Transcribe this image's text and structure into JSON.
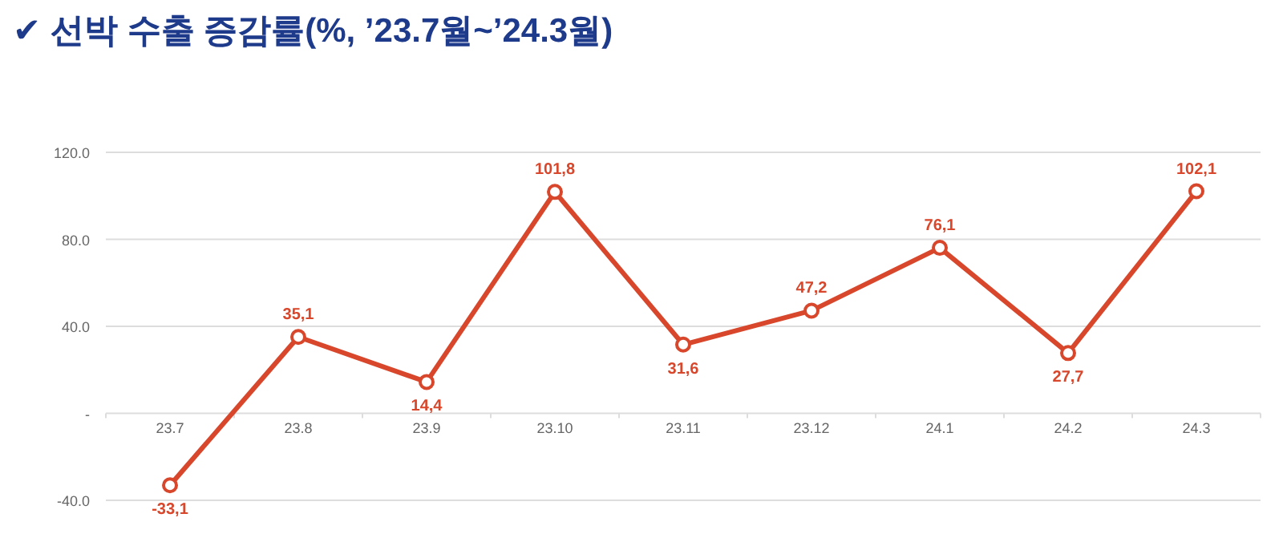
{
  "chart_data": {
    "type": "line",
    "title": "✔ 선박 수출 증감률(%, ’23.7월~’24.3월)",
    "categories": [
      "23.7",
      "23.8",
      "23.9",
      "23.10",
      "23.11",
      "23.12",
      "24.1",
      "24.2",
      "24.3"
    ],
    "series": [
      {
        "color": "#d8472b",
        "values": [
          -33.1,
          35.1,
          14.4,
          101.8,
          31.6,
          47.2,
          76.1,
          27.7,
          102.1
        ],
        "value_labels": [
          "-33,1",
          "35,1",
          "14,4",
          "101,8",
          "31,6",
          "47,2",
          "76,1",
          "27,7",
          "102,1"
        ]
      }
    ],
    "ylim": [
      -40,
      120
    ],
    "yticks": [
      {
        "value": -40,
        "label": "-40.0"
      },
      {
        "value": 0,
        "label": "-"
      },
      {
        "value": 40,
        "label": "40.0"
      },
      {
        "value": 80,
        "label": "80.0"
      },
      {
        "value": 120,
        "label": "120.0"
      }
    ],
    "grid": "y",
    "marker": "circle",
    "line_style": "solid"
  }
}
